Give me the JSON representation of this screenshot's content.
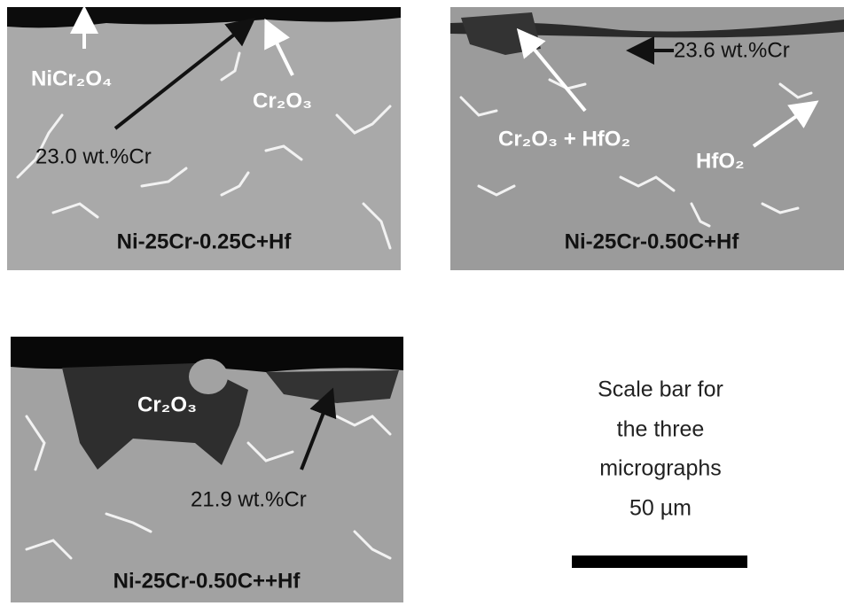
{
  "panels": [
    {
      "label": "Ni-25Cr-0.25C+Hf",
      "annotations": [
        "NiCr₂O₄",
        "Cr₂O₃",
        "23.0 wt.%Cr"
      ]
    },
    {
      "label": "Ni-25Cr-0.50C+Hf",
      "annotations": [
        "23.6 wt.%Cr",
        "Cr₂O₃ + HfO₂",
        "HfO₂"
      ]
    },
    {
      "label": "Ni-25Cr-0.50C++Hf",
      "annotations": [
        "Cr₂O₃",
        "21.9 wt.%Cr"
      ]
    }
  ],
  "scale_note": {
    "lines": [
      "Scale bar for",
      "the three",
      "micrographs",
      "50 µm"
    ]
  }
}
